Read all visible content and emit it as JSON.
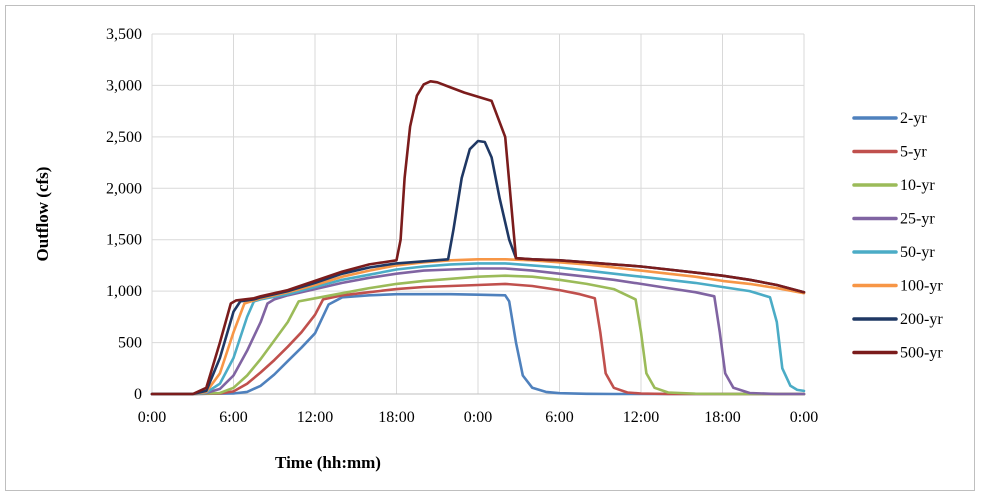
{
  "chart_data": {
    "type": "line",
    "title": "",
    "xlabel": "Time (hh:mm)",
    "ylabel": "Outflow (cfs)",
    "ylim": [
      0,
      3500
    ],
    "xlim": [
      0,
      48
    ],
    "x_unit": "hours",
    "yticks": [
      0,
      500,
      1000,
      1500,
      2000,
      2500,
      3000,
      3500
    ],
    "ytick_labels": [
      "0",
      "500",
      "1,000",
      "1,500",
      "2,000",
      "2,500",
      "3,000",
      "3,500"
    ],
    "xticks": [
      0,
      6,
      12,
      18,
      24,
      30,
      36,
      42,
      48
    ],
    "xtick_labels": [
      "0:00",
      "6:00",
      "12:00",
      "18:00",
      "0:00",
      "6:00",
      "12:00",
      "18:00",
      "0:00"
    ],
    "grid": true,
    "legend_position": "right",
    "series": [
      {
        "name": "2-yr",
        "color": "#4f81bd",
        "x": [
          0,
          3,
          6,
          7,
          8,
          9,
          10,
          11,
          12,
          13,
          14,
          16,
          18,
          20,
          22,
          24,
          26,
          26.3,
          26.8,
          27.3,
          28,
          29,
          30,
          32,
          34,
          48
        ],
        "y": [
          0,
          0,
          5,
          20,
          80,
          190,
          320,
          450,
          590,
          870,
          940,
          960,
          970,
          970,
          970,
          965,
          960,
          900,
          500,
          180,
          60,
          20,
          8,
          2,
          0,
          0
        ]
      },
      {
        "name": "5-yr",
        "color": "#c0504d",
        "x": [
          0,
          3,
          5,
          6,
          7,
          8,
          9,
          10,
          11,
          12,
          12.6,
          14,
          16,
          18,
          20,
          22,
          24,
          26,
          28,
          30,
          31.5,
          32.6,
          33,
          33.4,
          34,
          35,
          36,
          38,
          48
        ],
        "y": [
          0,
          0,
          5,
          25,
          100,
          210,
          330,
          460,
          600,
          770,
          920,
          960,
          990,
          1020,
          1040,
          1050,
          1060,
          1070,
          1050,
          1010,
          970,
          930,
          600,
          200,
          60,
          15,
          5,
          0,
          0
        ]
      },
      {
        "name": "10-yr",
        "color": "#9bbb59",
        "x": [
          0,
          3,
          5,
          6,
          7,
          8,
          9,
          10,
          10.8,
          12,
          14,
          16,
          18,
          20,
          22,
          24,
          26,
          28,
          30,
          32,
          34,
          35.6,
          36,
          36.4,
          37,
          38,
          40,
          42,
          48
        ],
        "y": [
          0,
          0,
          10,
          60,
          180,
          340,
          520,
          700,
          900,
          930,
          980,
          1030,
          1070,
          1100,
          1120,
          1140,
          1150,
          1140,
          1110,
          1070,
          1020,
          920,
          600,
          200,
          60,
          15,
          3,
          0,
          0
        ]
      },
      {
        "name": "25-yr",
        "color": "#8064a2",
        "x": [
          0,
          3,
          4,
          5,
          6,
          7,
          8,
          8.5,
          9,
          10,
          12,
          14,
          16,
          18,
          20,
          22,
          24,
          26,
          28,
          30,
          32,
          34,
          36,
          38,
          40,
          41.4,
          41.8,
          42.2,
          42.8,
          44,
          46,
          48
        ],
        "y": [
          0,
          0,
          10,
          50,
          180,
          420,
          700,
          880,
          920,
          960,
          1020,
          1080,
          1130,
          1170,
          1200,
          1210,
          1220,
          1220,
          1200,
          1170,
          1140,
          1110,
          1070,
          1030,
          990,
          950,
          600,
          200,
          60,
          10,
          0,
          0
        ]
      },
      {
        "name": "50-yr",
        "color": "#4bacc6",
        "x": [
          0,
          3,
          4,
          5,
          6,
          7,
          7.5,
          8,
          10,
          12,
          14,
          16,
          18,
          20,
          22,
          24,
          26,
          28,
          30,
          32,
          34,
          36,
          38,
          40,
          42,
          44,
          45.5,
          46,
          46.4,
          47,
          47.5,
          48
        ],
        "y": [
          0,
          0,
          15,
          100,
          350,
          750,
          900,
          920,
          970,
          1040,
          1110,
          1160,
          1210,
          1240,
          1260,
          1270,
          1270,
          1250,
          1230,
          1200,
          1170,
          1140,
          1110,
          1080,
          1040,
          1000,
          940,
          700,
          250,
          80,
          40,
          30
        ]
      },
      {
        "name": "100-yr",
        "color": "#f79646",
        "x": [
          0,
          3,
          4,
          5,
          6,
          6.8,
          7.5,
          8,
          10,
          12,
          14,
          16,
          18,
          20,
          22,
          24,
          26,
          28,
          30,
          32,
          34,
          36,
          38,
          40,
          42,
          44,
          46,
          48
        ],
        "y": [
          0,
          0,
          20,
          200,
          600,
          880,
          910,
          930,
          990,
          1060,
          1140,
          1200,
          1250,
          1280,
          1300,
          1310,
          1310,
          1300,
          1280,
          1260,
          1230,
          1200,
          1170,
          1140,
          1100,
          1070,
          1030,
          980
        ]
      },
      {
        "name": "200-yr",
        "color": "#1f3864",
        "x": [
          0,
          3,
          4,
          5,
          6,
          6.5,
          7.5,
          8,
          10,
          12,
          14,
          16,
          18,
          20,
          21.8,
          22.2,
          22.8,
          23.4,
          24,
          24.5,
          25,
          25.6,
          26.3,
          26.8,
          28,
          30,
          32,
          34,
          36,
          38,
          40,
          42,
          44,
          46,
          48
        ],
        "y": [
          0,
          0,
          30,
          350,
          800,
          900,
          920,
          940,
          1000,
          1080,
          1170,
          1230,
          1270,
          1290,
          1310,
          1600,
          2100,
          2380,
          2460,
          2450,
          2300,
          1900,
          1500,
          1320,
          1310,
          1300,
          1280,
          1260,
          1240,
          1210,
          1180,
          1150,
          1110,
          1060,
          990
        ]
      },
      {
        "name": "500-yr",
        "color": "#7b1c1c",
        "x": [
          0,
          3,
          4,
          5,
          5.8,
          6.2,
          7.5,
          8,
          10,
          12,
          14,
          16,
          18,
          18.3,
          18.6,
          19,
          19.5,
          20,
          20.5,
          21,
          22,
          23,
          24,
          25,
          26,
          26.8,
          28,
          30,
          32,
          34,
          36,
          38,
          40,
          42,
          44,
          46,
          48
        ],
        "y": [
          0,
          0,
          60,
          500,
          880,
          910,
          930,
          950,
          1010,
          1100,
          1190,
          1260,
          1300,
          1500,
          2100,
          2600,
          2900,
          3010,
          3040,
          3030,
          2980,
          2930,
          2890,
          2850,
          2500,
          1320,
          1310,
          1300,
          1280,
          1260,
          1240,
          1210,
          1180,
          1150,
          1110,
          1060,
          990
        ]
      }
    ]
  }
}
